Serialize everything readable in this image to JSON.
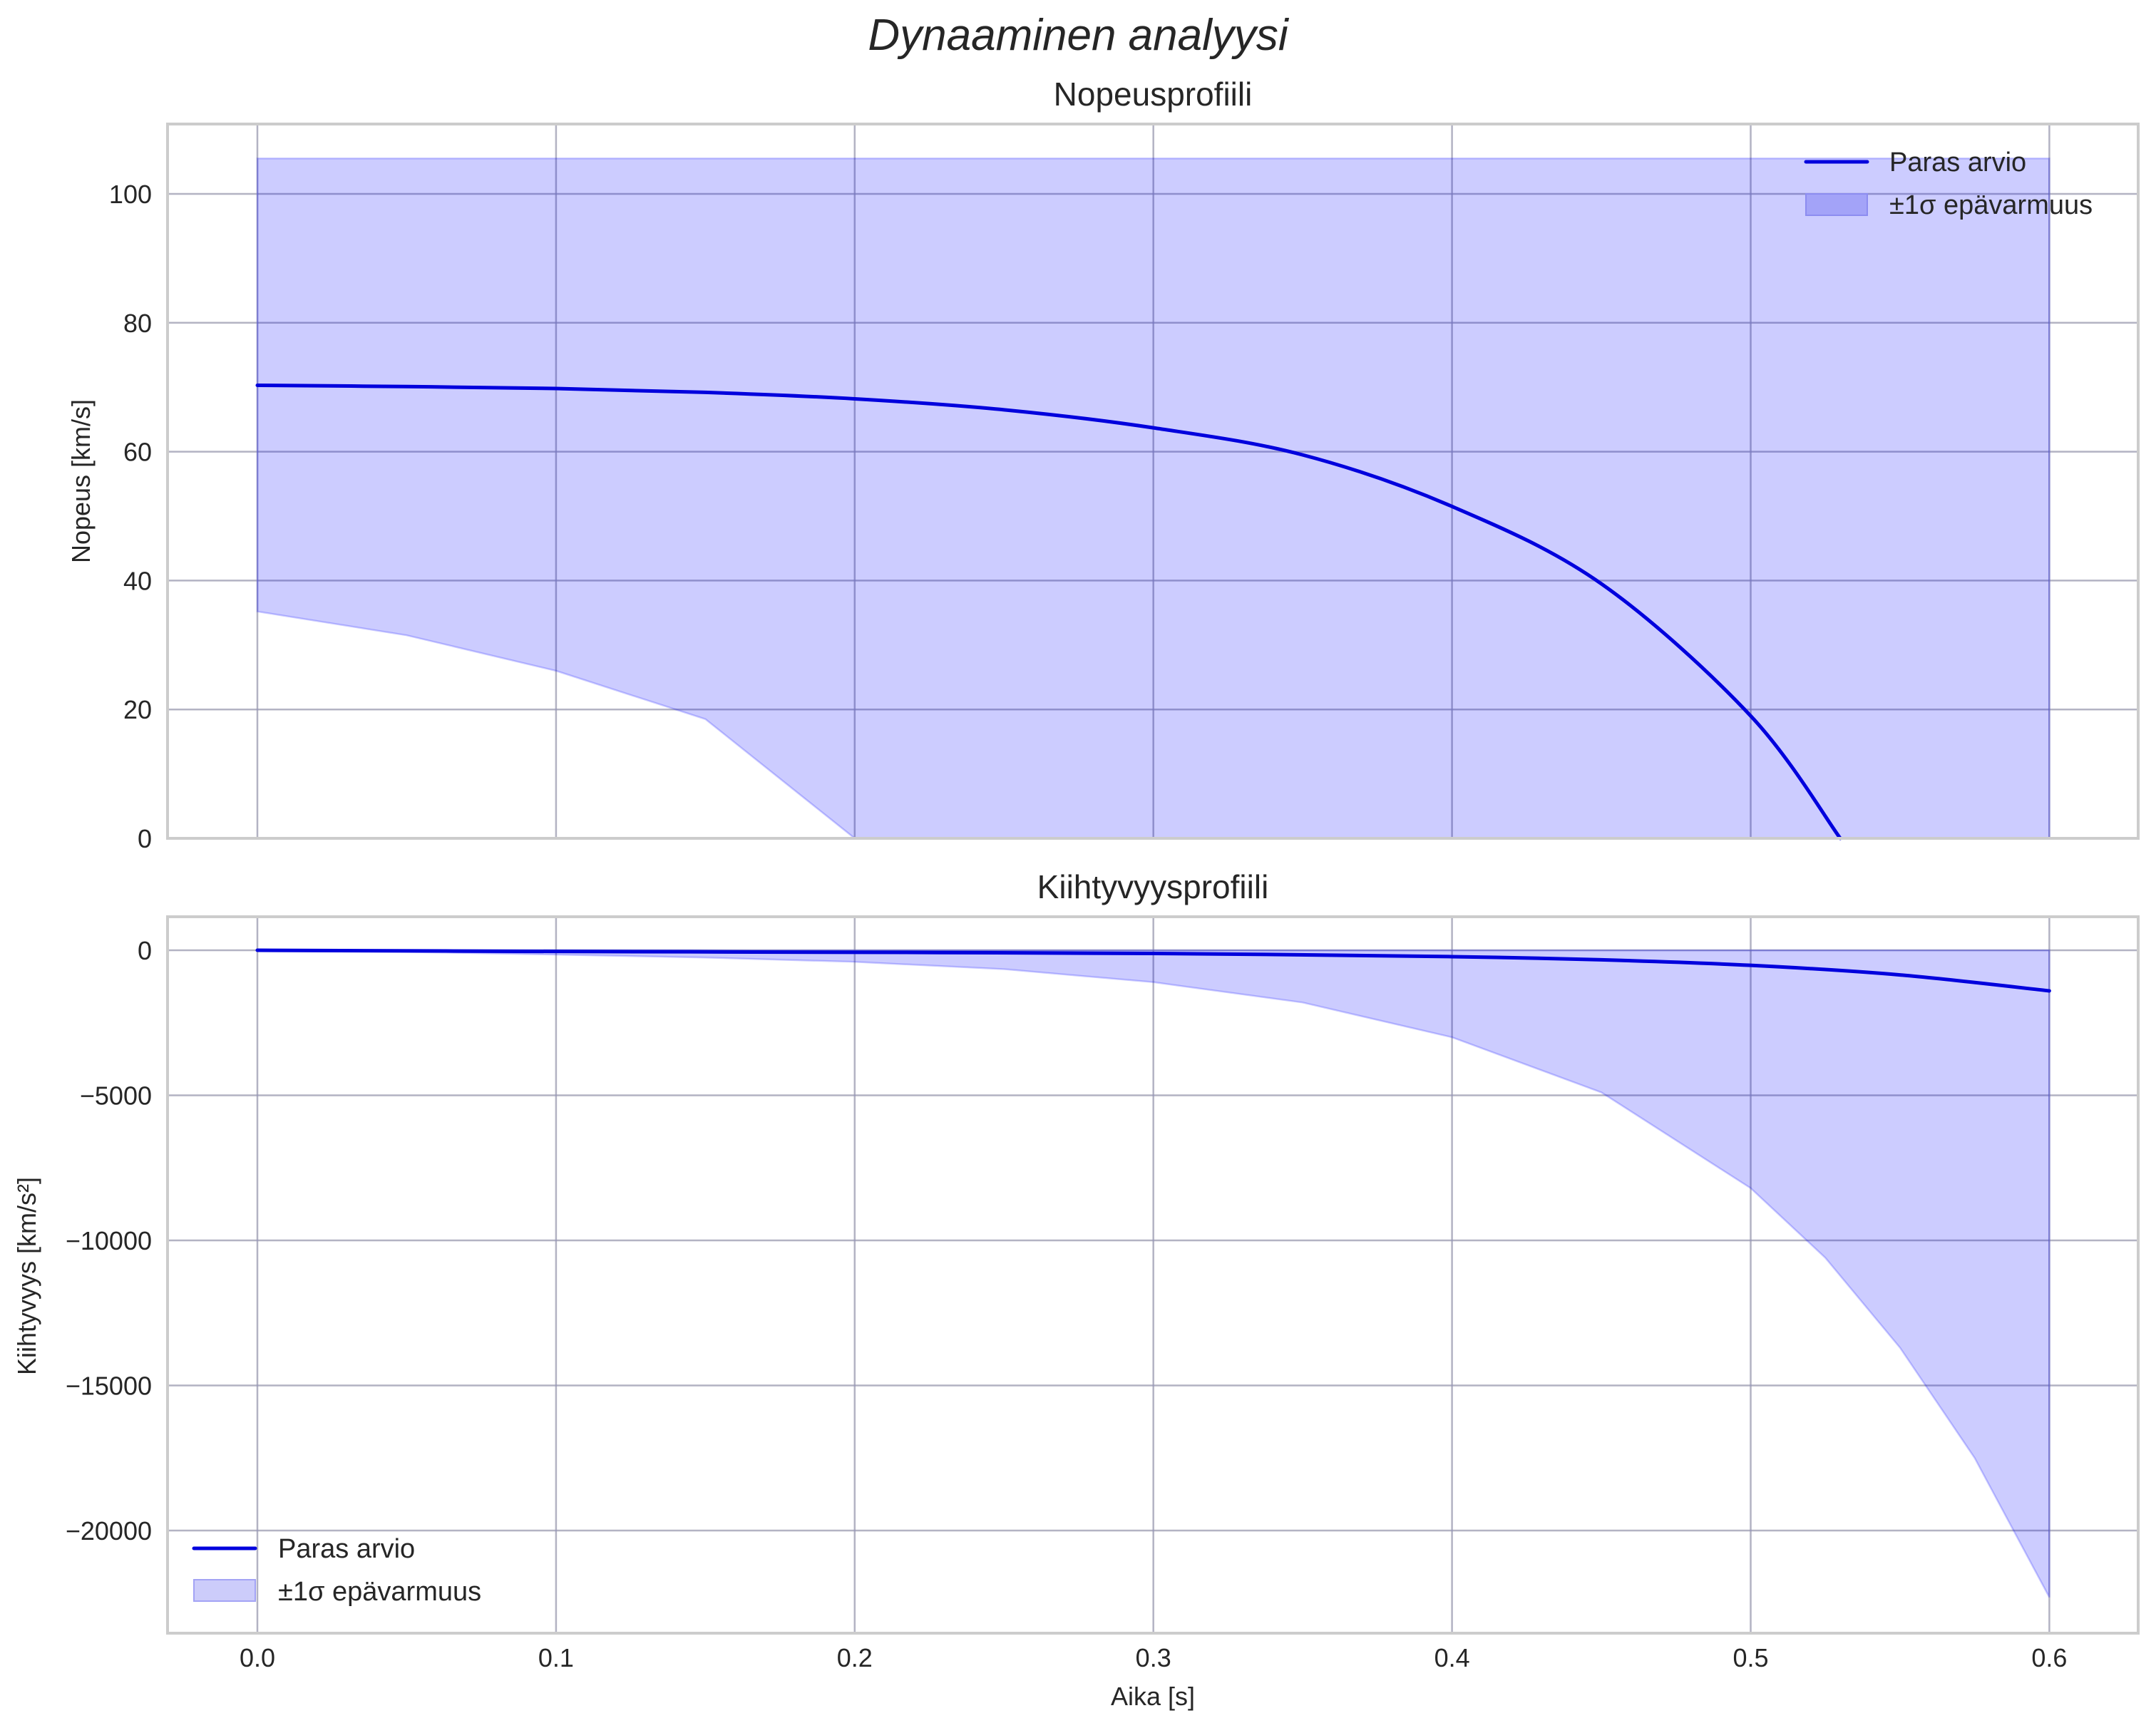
{
  "figure": {
    "suptitle": "Dynaaminen analyysi",
    "xlabel": "Aika [s]"
  },
  "legend": {
    "line_label": "Paras arvio",
    "band_label": "±1σ epävarmuus"
  },
  "colors": {
    "line": "#0000dd",
    "band": "#ccccfa",
    "grid": "#cccccc"
  },
  "chart_data": [
    {
      "type": "line",
      "title": "Nopeusprofiili",
      "xlabel": "",
      "ylabel": "Nopeus [km/s]",
      "xlim": [
        -0.03,
        0.63
      ],
      "ylim": [
        0,
        110
      ],
      "xticks": [
        "0.0",
        "0.1",
        "0.2",
        "0.3",
        "0.4",
        "0.5",
        "0.6"
      ],
      "yticks": [
        "0",
        "20",
        "40",
        "60",
        "80",
        "100"
      ],
      "grid": true,
      "legend_position": "upper right",
      "series": [
        {
          "name": "Paras arvio",
          "x": [
            0.0,
            0.05,
            0.1,
            0.15,
            0.2,
            0.25,
            0.3,
            0.35,
            0.4,
            0.45,
            0.5,
            0.53
          ],
          "values": [
            70.3,
            70.1,
            69.8,
            69.2,
            68.2,
            66.5,
            63.7,
            59.5,
            51.5,
            39.5,
            19.0,
            0.0
          ]
        },
        {
          "name": "±1σ epävarmuus",
          "x": [
            0.0,
            0.05,
            0.1,
            0.15,
            0.2,
            0.25,
            0.3,
            0.35,
            0.4,
            0.45,
            0.5,
            0.55,
            0.6
          ],
          "upper": [
            105.5,
            105.5,
            105.5,
            105.5,
            105.5,
            105.5,
            105.5,
            105.5,
            105.5,
            105.5,
            105.5,
            105.5,
            105.5
          ],
          "lower": [
            35.2,
            31.5,
            26.0,
            18.5,
            0.0,
            0.0,
            0.0,
            0.0,
            0.0,
            0.0,
            0.0,
            0.0,
            0.0
          ]
        }
      ]
    },
    {
      "type": "line",
      "title": "Kiihtyvyysprofiili",
      "xlabel": "Aika [s]",
      "ylabel": "Kiihtyvyys [km/s²]",
      "xlim": [
        -0.03,
        0.63
      ],
      "ylim": [
        -23500,
        1100
      ],
      "xticks": [
        "0.0",
        "0.1",
        "0.2",
        "0.3",
        "0.4",
        "0.5",
        "0.6"
      ],
      "yticks": [
        "0",
        "−5000",
        "−10000",
        "−15000",
        "−20000"
      ],
      "grid": true,
      "legend_position": "lower left",
      "series": [
        {
          "name": "Paras arvio",
          "x": [
            0.0,
            0.1,
            0.2,
            0.3,
            0.4,
            0.45,
            0.5,
            0.55,
            0.6
          ],
          "values": [
            0,
            -40,
            -70,
            -110,
            -220,
            -330,
            -520,
            -850,
            -1400
          ]
        },
        {
          "name": "±1σ epävarmuus",
          "x": [
            0.0,
            0.05,
            0.1,
            0.15,
            0.2,
            0.25,
            0.3,
            0.35,
            0.4,
            0.45,
            0.5,
            0.525,
            0.55,
            0.575,
            0.6
          ],
          "upper": [
            0,
            0,
            0,
            0,
            0,
            0,
            0,
            0,
            0,
            0,
            0,
            0,
            0,
            0,
            0
          ],
          "lower": [
            0,
            -60,
            -150,
            -250,
            -400,
            -650,
            -1100,
            -1800,
            -3000,
            -4900,
            -8200,
            -10600,
            -13700,
            -17500,
            -22300
          ]
        }
      ]
    }
  ]
}
